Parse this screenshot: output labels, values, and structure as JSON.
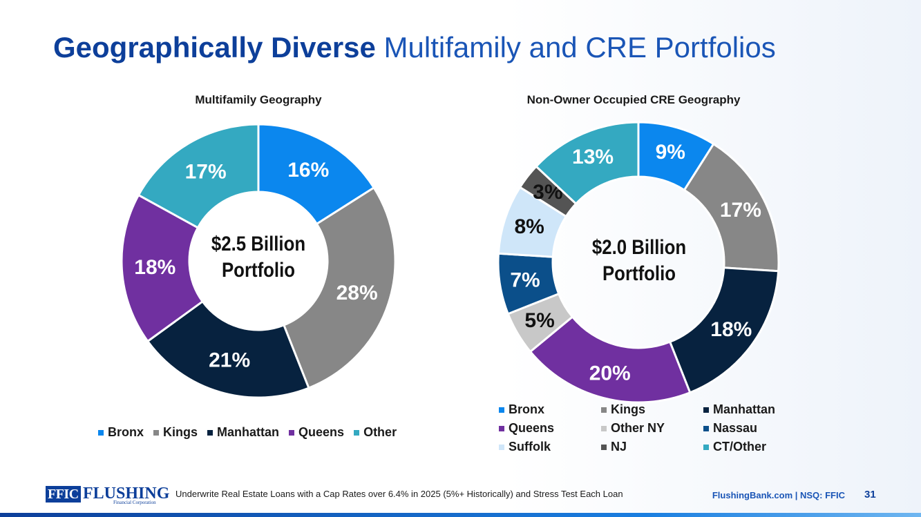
{
  "page": {
    "title_bold": "Geographically Diverse",
    "title_rest": " Multifamily and CRE Portfolios"
  },
  "chart_data": [
    {
      "type": "pie",
      "subtype": "donut",
      "title": "Multifamily Geography",
      "center_line1": "$2.5 Billion",
      "center_line2": "Portfolio",
      "categories": [
        "Bronx",
        "Kings",
        "Manhattan",
        "Queens",
        "Other"
      ],
      "values": [
        16,
        28,
        21,
        18,
        17
      ],
      "labels": [
        "16%",
        "28%",
        "21%",
        "18%",
        "17%"
      ],
      "colors": [
        "#0b87ee",
        "#878787",
        "#07223f",
        "#7030a0",
        "#34a9c1"
      ],
      "label_colors": [
        "#ffffff",
        "#ffffff",
        "#ffffff",
        "#ffffff",
        "#ffffff"
      ],
      "legend_position": "bottom"
    },
    {
      "type": "pie",
      "subtype": "donut",
      "title": "Non-Owner Occupied CRE Geography",
      "center_line1": "$2.0 Billion",
      "center_line2": "Portfolio",
      "categories": [
        "Bronx",
        "Kings",
        "Manhattan",
        "Queens",
        "Other NY",
        "Nassau",
        "Suffolk",
        "NJ",
        "CT/Other"
      ],
      "values": [
        9,
        17,
        18,
        20,
        5,
        7,
        8,
        3,
        13
      ],
      "labels": [
        "9%",
        "17%",
        "18%",
        "20%",
        "5%",
        "7%",
        "8%",
        "3%",
        "13%"
      ],
      "colors": [
        "#0b87ee",
        "#878787",
        "#07223f",
        "#7030a0",
        "#c8c8c8",
        "#0b4f8a",
        "#cfe6f9",
        "#545454",
        "#34a9c1"
      ],
      "label_colors": [
        "#ffffff",
        "#ffffff",
        "#ffffff",
        "#ffffff",
        "#111111",
        "#ffffff",
        "#111111",
        "#111111",
        "#ffffff"
      ],
      "legend_position": "bottom"
    }
  ],
  "footer": {
    "logo_mark": "FFIC",
    "logo_name": "FLUSHING",
    "logo_sub": "Financial Corporation",
    "note": "Underwrite Real Estate Loans with a Cap Rates over 6.4% in 2025 (5%+ Historically) and Stress Test Each Loan",
    "site": "FlushingBank.com  |  NSQ: FFIC",
    "page_number": "31"
  }
}
